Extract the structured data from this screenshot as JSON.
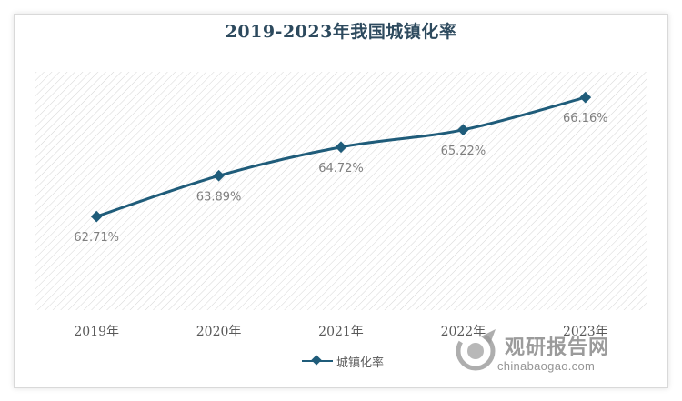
{
  "chart_data": {
    "type": "line",
    "title": "2019-2023年我国城镇化率",
    "categories": [
      "2019年",
      "2020年",
      "2021年",
      "2022年",
      "2023年"
    ],
    "series": [
      {
        "name": "城镇化率",
        "values": [
          62.71,
          63.89,
          64.72,
          65.22,
          66.16
        ],
        "labels": [
          "62.71%",
          "63.89%",
          "64.72%",
          "65.22%",
          "66.16%"
        ]
      }
    ],
    "ylim": [
      60.0,
      66.9
    ],
    "grid": false,
    "legend": "bottom",
    "colors": {
      "line": "#1f5c7a",
      "plot_pattern": "#d6d6d6"
    }
  },
  "watermark": {
    "name": "观研报告网",
    "url": "chinabaogao.com"
  }
}
